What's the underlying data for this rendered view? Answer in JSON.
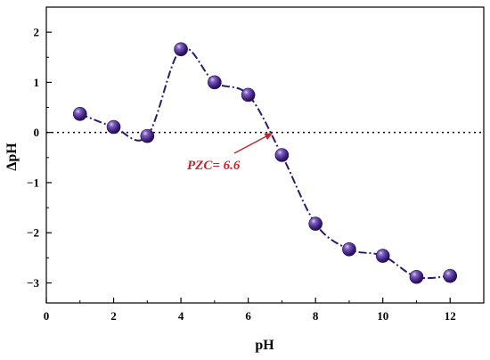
{
  "chart_data": {
    "type": "line",
    "xlabel": "pH",
    "ylabel": "ΔpH",
    "xlim": [
      0,
      13
    ],
    "ylim": [
      -3.4,
      2.5
    ],
    "xticks": [
      0,
      2,
      4,
      6,
      8,
      10,
      12
    ],
    "yticks": [
      -3,
      -2,
      -1,
      0,
      1,
      2
    ],
    "x_tick_labels": [
      "0",
      "2",
      "4",
      "6",
      "8",
      "10",
      "12"
    ],
    "y_tick_labels": [
      "−3",
      "−2",
      "−1",
      "0",
      "1",
      "2"
    ],
    "grid": false,
    "reference_line_y": 0,
    "series": [
      {
        "x": [
          1,
          2,
          3,
          4,
          5,
          6,
          7,
          8,
          9,
          10,
          11,
          12
        ],
        "y": [
          0.37,
          0.11,
          -0.07,
          1.66,
          1.0,
          0.75,
          -0.45,
          -1.82,
          -2.33,
          -2.46,
          -2.88,
          -2.86
        ]
      }
    ],
    "annotation": {
      "text": "PZC= 6.6",
      "x": 6.6,
      "y": 0,
      "color": "#c0262d"
    },
    "colors": {
      "line": "#2e1a6b",
      "marker": "#3a1e7a",
      "annotation": "#c0262d"
    }
  }
}
